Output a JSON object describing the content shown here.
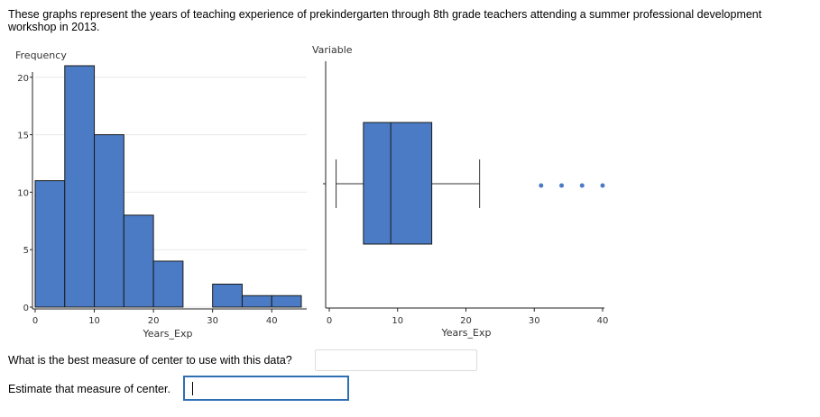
{
  "intro_text": "These graphs represent the years of teaching experience of prekindergarten through 8th grade teachers attending a summer professional development workshop in 2013.",
  "questions": {
    "q1": {
      "text": "What is the best measure of center to use with this data?",
      "value": ""
    },
    "q2": {
      "text": "Estimate that measure of center.",
      "value": ""
    }
  },
  "colors": {
    "fill": "#4a7bc4",
    "stroke": "#1a1a1a",
    "axis": "#222222",
    "grid": "#e8e8e8"
  },
  "chart_data": [
    {
      "type": "bar",
      "subtype": "histogram",
      "title": "",
      "xlabel": "Years_Exp",
      "ylabel": "Frequency",
      "bin_width": 5,
      "bins": [
        {
          "start": 0,
          "end": 5,
          "count": 11
        },
        {
          "start": 5,
          "end": 10,
          "count": 21
        },
        {
          "start": 10,
          "end": 15,
          "count": 15
        },
        {
          "start": 15,
          "end": 20,
          "count": 8
        },
        {
          "start": 20,
          "end": 25,
          "count": 4
        },
        {
          "start": 25,
          "end": 30,
          "count": 0
        },
        {
          "start": 30,
          "end": 35,
          "count": 2
        },
        {
          "start": 35,
          "end": 40,
          "count": 1
        },
        {
          "start": 40,
          "end": 45,
          "count": 1
        }
      ],
      "xlim": [
        0,
        45
      ],
      "ylim": [
        0,
        21
      ],
      "xticks": [
        0,
        10,
        20,
        30,
        40
      ],
      "yticks": [
        0,
        5,
        10,
        15,
        20
      ],
      "grid": true
    },
    {
      "type": "boxplot",
      "title": "Variable",
      "xlabel": "Years_Exp",
      "whisker_low": 1,
      "q1": 5,
      "median": 9,
      "q3": 15,
      "whisker_high": 22,
      "outliers": [
        31,
        34,
        37,
        40
      ],
      "xlim": [
        0,
        40
      ],
      "xticks": [
        0,
        10,
        20,
        30,
        40
      ],
      "grid": false
    }
  ]
}
